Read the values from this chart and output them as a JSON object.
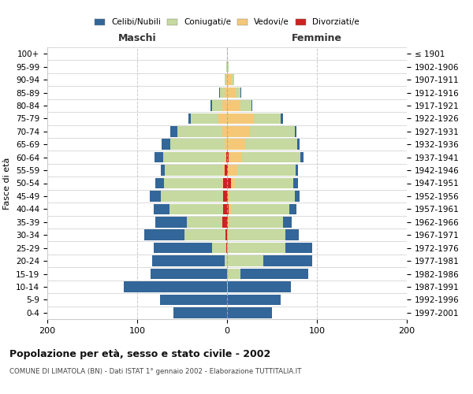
{
  "age_groups": [
    "0-4",
    "5-9",
    "10-14",
    "15-19",
    "20-24",
    "25-29",
    "30-34",
    "35-39",
    "40-44",
    "45-49",
    "50-54",
    "55-59",
    "60-64",
    "65-69",
    "70-74",
    "75-79",
    "80-84",
    "85-89",
    "90-94",
    "95-99",
    "100+"
  ],
  "birth_years": [
    "1997-2001",
    "1992-1996",
    "1987-1991",
    "1982-1986",
    "1977-1981",
    "1972-1976",
    "1967-1971",
    "1962-1966",
    "1957-1961",
    "1952-1956",
    "1947-1951",
    "1942-1946",
    "1937-1941",
    "1932-1936",
    "1927-1931",
    "1922-1926",
    "1917-1921",
    "1912-1916",
    "1907-1911",
    "1902-1906",
    "≤ 1901"
  ],
  "males": {
    "celibi": [
      60,
      75,
      115,
      85,
      80,
      65,
      45,
      35,
      18,
      12,
      10,
      5,
      10,
      10,
      8,
      3,
      1,
      1,
      0,
      0,
      0
    ],
    "coniugati": [
      0,
      0,
      0,
      0,
      3,
      15,
      45,
      40,
      60,
      70,
      65,
      65,
      68,
      60,
      50,
      30,
      12,
      5,
      2,
      1,
      0
    ],
    "vedovi": [
      0,
      0,
      0,
      0,
      0,
      1,
      0,
      0,
      0,
      0,
      1,
      1,
      2,
      3,
      5,
      10,
      5,
      3,
      1,
      0,
      0
    ],
    "divorziati": [
      0,
      0,
      0,
      0,
      0,
      1,
      2,
      5,
      4,
      4,
      4,
      3,
      1,
      0,
      0,
      0,
      0,
      0,
      0,
      0,
      0
    ]
  },
  "females": {
    "nubili": [
      50,
      60,
      70,
      75,
      55,
      30,
      15,
      10,
      8,
      6,
      5,
      3,
      3,
      3,
      2,
      2,
      1,
      1,
      0,
      0,
      0
    ],
    "coniugate": [
      0,
      0,
      1,
      15,
      40,
      65,
      65,
      60,
      65,
      72,
      65,
      65,
      65,
      58,
      50,
      30,
      12,
      5,
      3,
      1,
      0
    ],
    "vedove": [
      0,
      0,
      0,
      0,
      0,
      0,
      0,
      1,
      2,
      2,
      5,
      10,
      15,
      20,
      25,
      30,
      15,
      10,
      5,
      1,
      0
    ],
    "divorziate": [
      0,
      0,
      0,
      0,
      0,
      0,
      0,
      1,
      2,
      1,
      4,
      1,
      2,
      0,
      0,
      0,
      0,
      0,
      0,
      0,
      0
    ]
  },
  "colors": {
    "celibi": "#336699",
    "coniugati": "#c5d9a0",
    "vedovi": "#f5c878",
    "divorziati": "#cc2222"
  },
  "xlim": 200,
  "title": "Popolazione per età, sesso e stato civile - 2002",
  "subtitle": "COMUNE DI LIMATOLA (BN) - Dati ISTAT 1° gennaio 2002 - Elaborazione TUTTITALIA.IT",
  "ylabel": "Fasce di età",
  "label_maschi": "Maschi",
  "label_femmine": "Femmine",
  "legend_labels": [
    "Celibi/Nubili",
    "Coniugati/e",
    "Vedovi/e",
    "Divorziati/e"
  ],
  "bg_color": "#ffffff",
  "grid_color": "#cccccc"
}
